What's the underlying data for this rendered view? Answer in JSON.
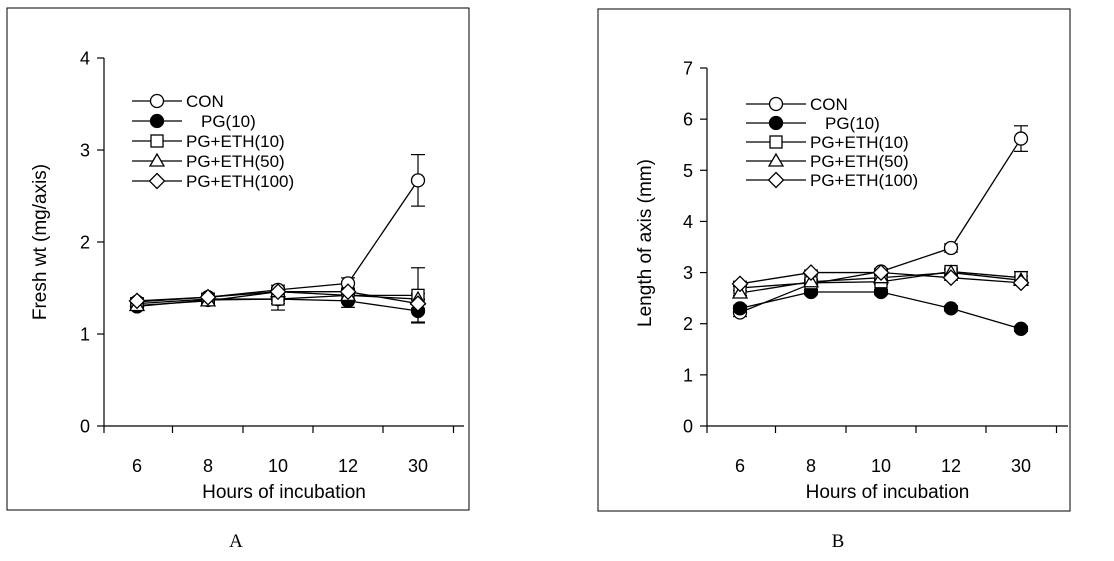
{
  "chart_data": [
    {
      "type": "line",
      "panel_label": "A",
      "categories": [
        "6",
        "8",
        "10",
        "12",
        "30"
      ],
      "ylabel": "Fresh wt (mg/axis)",
      "xlabel": "Hours of incubation",
      "ylim": [
        0,
        4
      ],
      "yticks": [
        "0",
        "1",
        "2",
        "3",
        "4"
      ],
      "legend_position": "top-left",
      "grid": false,
      "series": [
        {
          "name": "CON",
          "marker": "circle-open",
          "values": [
            1.35,
            1.4,
            1.48,
            1.55,
            2.67
          ],
          "err": [
            0.04,
            0.04,
            0.05,
            0.06,
            0.28
          ]
        },
        {
          "name": "PG(10)",
          "marker": "circle-filled",
          "values": [
            1.3,
            1.37,
            1.38,
            1.36,
            1.25
          ],
          "err": [
            0.04,
            0.04,
            0.12,
            0.07,
            0.12
          ]
        },
        {
          "name": "PG+ETH(10)",
          "marker": "square-open",
          "values": [
            1.33,
            1.38,
            1.38,
            1.42,
            1.42
          ],
          "err": [
            0.03,
            0.04,
            0.05,
            0.06,
            0.3
          ]
        },
        {
          "name": "PG+ETH(50)",
          "marker": "triangle-open",
          "values": [
            1.31,
            1.36,
            1.46,
            1.42,
            1.38
          ],
          "err": [
            0.03,
            0.04,
            0.05,
            0.05,
            0.06
          ]
        },
        {
          "name": "PG+ETH(100)",
          "marker": "diamond-open",
          "values": [
            1.36,
            1.4,
            1.46,
            1.46,
            1.33
          ],
          "err": [
            0.03,
            0.03,
            0.04,
            0.04,
            0.05
          ]
        }
      ]
    },
    {
      "type": "line",
      "panel_label": "B",
      "categories": [
        "6",
        "8",
        "10",
        "12",
        "30"
      ],
      "ylabel": "Length of axis (mm)",
      "xlabel": "Hours of incubation",
      "ylim": [
        0,
        7
      ],
      "yticks": [
        "0",
        "1",
        "2",
        "3",
        "4",
        "5",
        "6",
        "7"
      ],
      "legend_position": "top-left",
      "grid": false,
      "series": [
        {
          "name": "CON",
          "marker": "circle-open",
          "values": [
            2.22,
            2.78,
            3.02,
            3.48,
            5.62
          ],
          "err": [
            0.08,
            0.06,
            0.06,
            0.08,
            0.25
          ]
        },
        {
          "name": "PG(10)",
          "marker": "circle-filled",
          "values": [
            2.3,
            2.62,
            2.62,
            2.3,
            1.9
          ],
          "err": [
            0.06,
            0.05,
            0.05,
            0.05,
            0.05
          ]
        },
        {
          "name": "PG+ETH(10)",
          "marker": "square-open",
          "values": [
            2.7,
            2.8,
            2.82,
            3.02,
            2.9
          ],
          "err": [
            0.05,
            0.05,
            0.05,
            0.06,
            0.12
          ]
        },
        {
          "name": "PG+ETH(50)",
          "marker": "triangle-open",
          "values": [
            2.6,
            2.82,
            2.9,
            3.0,
            2.85
          ],
          "err": [
            0.05,
            0.05,
            0.05,
            0.05,
            0.08
          ]
        },
        {
          "name": "PG+ETH(100)",
          "marker": "diamond-open",
          "values": [
            2.78,
            3.0,
            3.0,
            2.9,
            2.8
          ],
          "err": [
            0.05,
            0.05,
            0.05,
            0.05,
            0.05
          ]
        }
      ]
    }
  ]
}
